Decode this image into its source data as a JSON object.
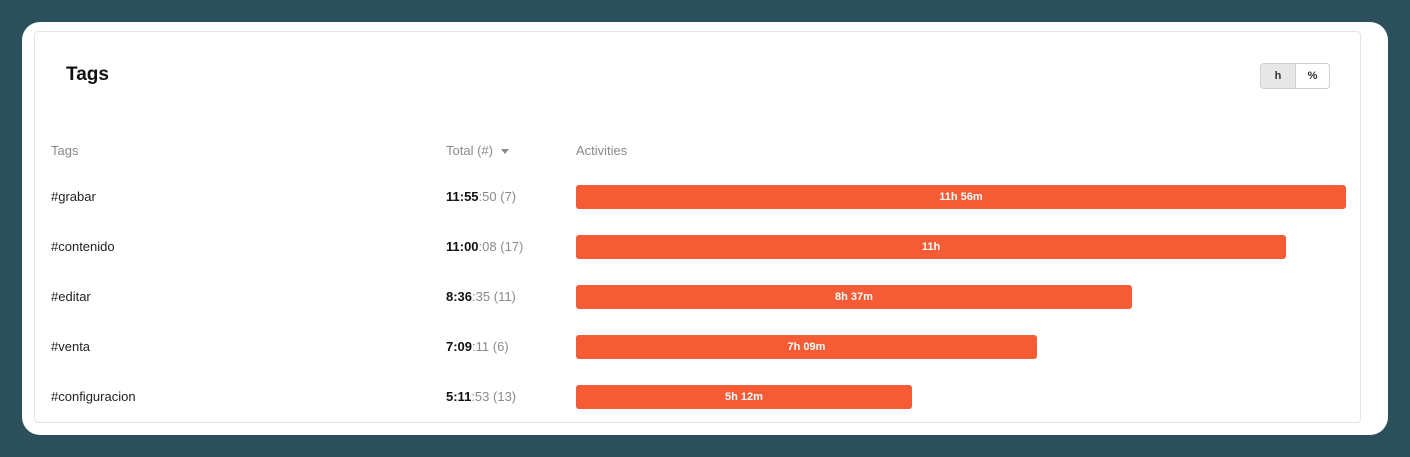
{
  "widget": {
    "title": "Tags",
    "unit_toggle": {
      "options": [
        "h",
        "%"
      ],
      "selected": "h"
    }
  },
  "table": {
    "columns": [
      "Tags",
      "Total (#)",
      "Activities"
    ],
    "sort_column": "Total (#)",
    "rows": [
      {
        "tag": "#grabar",
        "total_main": "11:55",
        "total_seconds": ":50",
        "count": "(7)",
        "bar_label": "11h 56m",
        "bar_minutes": 716
      },
      {
        "tag": "#contenido",
        "total_main": "11:00",
        "total_seconds": ":08",
        "count": "(17)",
        "bar_label": "11h",
        "bar_minutes": 660
      },
      {
        "tag": "#editar",
        "total_main": "8:36",
        "total_seconds": ":35",
        "count": "(11)",
        "bar_label": "8h 37m",
        "bar_minutes": 517
      },
      {
        "tag": "#venta",
        "total_main": "7:09",
        "total_seconds": ":11",
        "count": "(6)",
        "bar_label": "7h 09m",
        "bar_minutes": 429
      },
      {
        "tag": "#configuracion",
        "total_main": "5:11",
        "total_seconds": ":53",
        "count": "(13)",
        "bar_label": "5h 12m",
        "bar_minutes": 312
      }
    ]
  },
  "colors": {
    "bar": "#f55c36",
    "background": "#2c4f5c"
  }
}
